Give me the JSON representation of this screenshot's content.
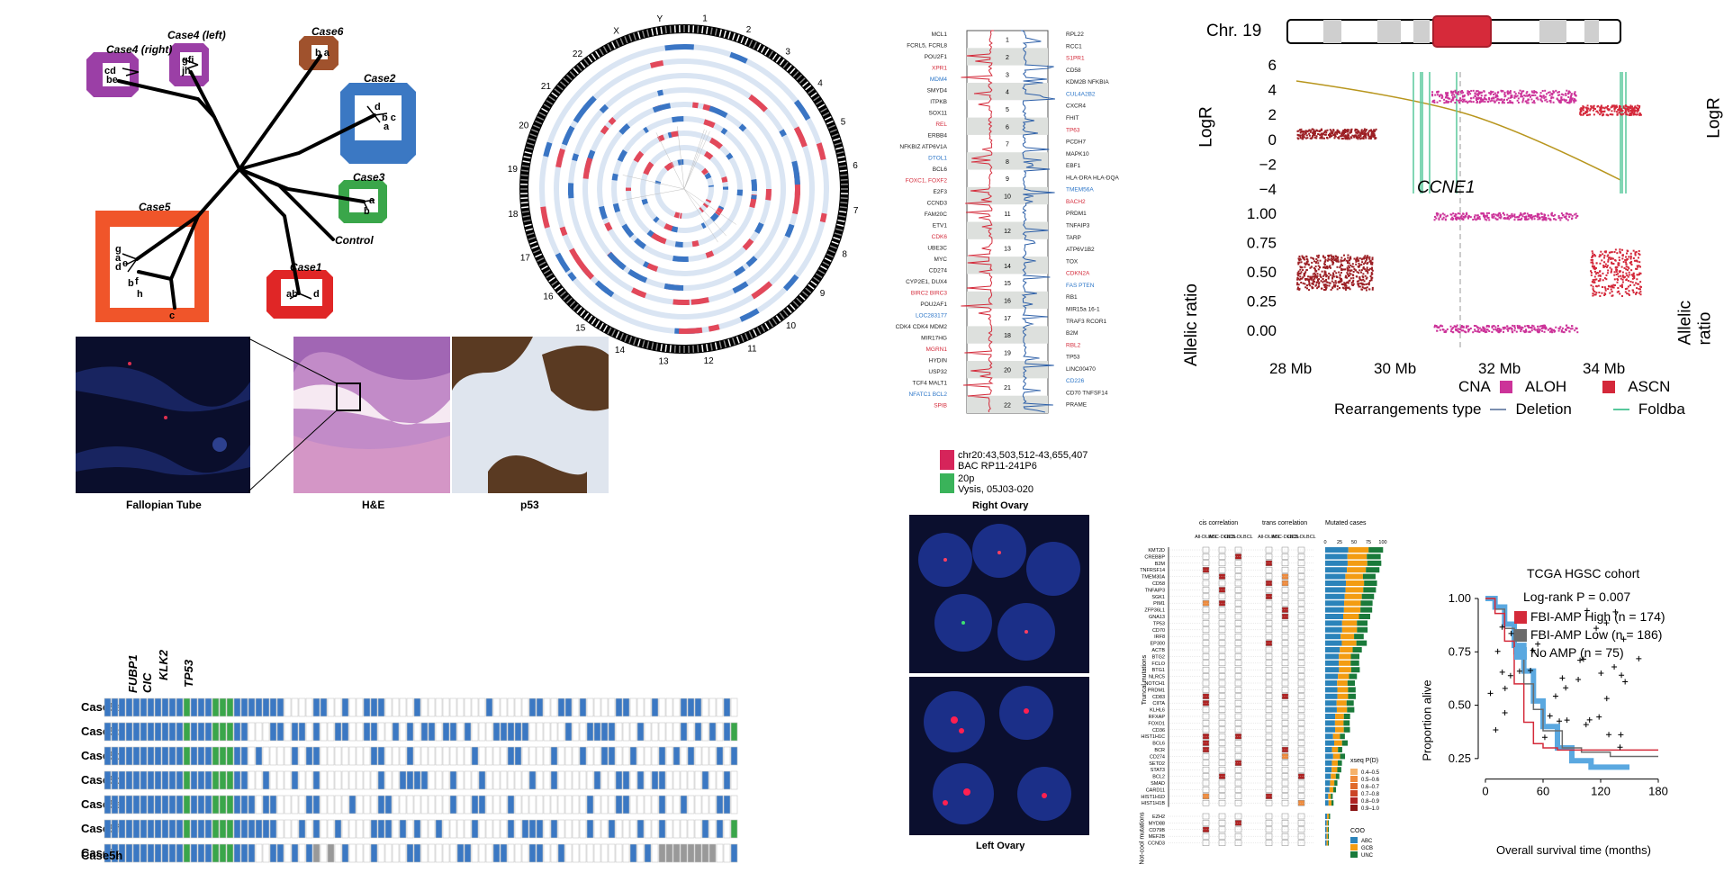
{
  "tree": {
    "cases": [
      {
        "name": "Case4 (right)",
        "color": "#9b3fa6",
        "letters": "cd be"
      },
      {
        "name": "Case4 (left)",
        "color": "#9b3fa6",
        "letters": "gfi jh"
      },
      {
        "name": "Case6",
        "color": "#a0522d",
        "letters": "b a"
      },
      {
        "name": "Case2",
        "color": "#3b78c3",
        "letters": "d b c a"
      },
      {
        "name": "Case3",
        "color": "#3aa64a",
        "letters": "a b"
      },
      {
        "name": "Case5",
        "color": "#f0552a",
        "letters": "g a d e b f h c"
      },
      {
        "name": "Control",
        "color": "",
        "letters": ""
      },
      {
        "name": "Case1",
        "color": "#e02626",
        "letters": "ab d"
      }
    ]
  },
  "circos": {
    "chromosomes": [
      "1",
      "2",
      "3",
      "4",
      "5",
      "6",
      "7",
      "8",
      "9",
      "10",
      "11",
      "12",
      "13",
      "14",
      "15",
      "16",
      "17",
      "18",
      "19",
      "20",
      "21",
      "22",
      "X",
      "Y"
    ]
  },
  "cnv_track": {
    "left_genes": [
      "MCL1",
      "FCRL5, FCRL8",
      "POU2F1",
      "XPR1",
      "MDM4",
      "SMYD4",
      "ITPKB",
      "SOX11",
      "REL",
      "ERBB4",
      "NFKBIZ ATP6V1A",
      "DTOL1",
      "BCL6",
      "FOXC1, FOXF2",
      "E2F3",
      "CCND3",
      "FAM20C",
      "ETV1",
      "CDK6",
      "UBE3C",
      "MYC",
      "CD274",
      "CYP2E1, DUX4",
      "BIRC2 BIRC3",
      "POU2AF1",
      "LOC283177",
      "CDK4 CDK4 MDM2",
      "MIR17HG",
      "MGRN1",
      "HYDIN",
      "USP32",
      "TCF4 MALT1",
      "NFATC1 BCL2",
      "SPIB"
    ],
    "right_genes": [
      "RPL22",
      "RCC1",
      "S1PR1",
      "CD58",
      "KDM2B NFKBIA",
      "CUL4A2B2",
      "CXCR4",
      "FHIT",
      "TP63",
      "PCDH7",
      "MAPK10",
      "EBF1",
      "HLA-DRA HLA-DQA",
      "TMEM56A",
      "BACH2",
      "PRDM1",
      "TNFAIP3",
      "TARP",
      "ATP6V1B2",
      "TOX",
      "CDKN2A",
      "FAS PTEN",
      "RB1",
      "MIR15a 16-1",
      "TRAF3 RCOR1",
      "B2M",
      "RBL2",
      "TP53",
      "LINC00470",
      "CD226",
      "CD70 TNFSF14",
      "PRAME"
    ],
    "chr_labels": [
      "1",
      "2",
      "3",
      "4",
      "5",
      "6",
      "7",
      "8",
      "9",
      "10",
      "11",
      "12",
      "13",
      "14",
      "15",
      "16",
      "17",
      "18",
      "19",
      "20",
      "21",
      "22"
    ],
    "legend": [
      {
        "color": "#d6245a",
        "text": "chr20:43,503,512-43,655,407",
        "sub": "BAC RP11-241P6"
      },
      {
        "color": "#3ab35a",
        "text": "20p",
        "sub": "Vysis, 05J03-020"
      }
    ]
  },
  "chr19": {
    "title": "Chr. 19",
    "logr_label": "LogR",
    "allelic_label": "Allelic ratio",
    "gene": "CCNE1",
    "logr_ticks": [
      "6",
      "4",
      "2",
      "0",
      "−2",
      "−4"
    ],
    "allelic_ticks": [
      "1.00",
      "0.75",
      "0.50",
      "0.25",
      "0.00"
    ],
    "x_ticks": [
      "28 Mb",
      "30 Mb",
      "32 Mb",
      "34 Mb"
    ],
    "legend1_title": "CNA",
    "legend1": [
      {
        "color": "#cc3399",
        "text": "ALOH"
      },
      {
        "color": "#d4283a",
        "text": "ASCN"
      }
    ],
    "legend2_title": "Rearrangements type",
    "legend2": [
      {
        "color": "#7b8fb0",
        "text": "Deletion"
      },
      {
        "color": "#58c89c",
        "text": "Foldba"
      }
    ]
  },
  "histology": {
    "labels": [
      "Fallopian Tube",
      "H&E",
      "p53"
    ]
  },
  "fish": {
    "top_label": "Right Ovary",
    "bottom_label": "Left Ovary"
  },
  "mutation_grid": {
    "genes": [
      "FUBP1",
      "CIC",
      "KLK2",
      "TP53"
    ],
    "rows": [
      "Case5a",
      "Case5b",
      "Case5c",
      "Case5d",
      "Case5e",
      "Case5f",
      "Case5g",
      "Case5h"
    ]
  },
  "heatmap": {
    "group_headers": [
      "cis correlation",
      "trans correlation",
      "Mutated cases"
    ],
    "col_headers": [
      "All-DLBCL",
      "ABC-DLBCL",
      "GCB-DLBCL",
      "All-DLBCL",
      "ABC-DLBCL",
      "GCB-DLBCL"
    ],
    "mutated_ticks": [
      "0",
      "25",
      "50",
      "75",
      "100"
    ],
    "side_labels": [
      "Truncal mutations",
      "Not-cool mutations"
    ],
    "genes": [
      "KMT2D",
      "CREBBP",
      "B2M",
      "TNFRSF14",
      "TMEM30A",
      "CD58",
      "TNFAIP3",
      "SGK1",
      "PIM1",
      "ZFP36L1",
      "GNA13",
      "TP53",
      "CD70",
      "IRF8",
      "EP300",
      "ACTB",
      "BTG2",
      "FCLO",
      "BTG1",
      "NLRC5",
      "NOTCH1",
      "PRDM1",
      "CD83",
      "CIITA",
      "KLHL6",
      "RFXAP",
      "FOXO1",
      "CD36",
      "HIST1H1C",
      "BCL6",
      "BCR",
      "CD274",
      "SETD2",
      "STAT3",
      "BCL2",
      "SMAD",
      "CARD11",
      "HIST1H1D",
      "HIST1H1B"
    ],
    "bottom_genes": [
      "EZH2",
      "MYD88",
      "CD79B",
      "MEF2B",
      "CCND3"
    ],
    "legend_title": "xseq P(D)",
    "legend_bins": [
      {
        "color": "#f6b26b",
        "text": "0.4–0.5"
      },
      {
        "color": "#f08b3c",
        "text": "0.5–0.6"
      },
      {
        "color": "#e06a2a",
        "text": "0.6–0.7"
      },
      {
        "color": "#cc4426",
        "text": "0.7–0.8"
      },
      {
        "color": "#b02222",
        "text": "0.8–0.9"
      },
      {
        "color": "#8a1515",
        "text": "0.9–1.0"
      }
    ],
    "coo_title": "COO",
    "coo": [
      {
        "color": "#2b83ba",
        "text": "ABC"
      },
      {
        "color": "#f39c12",
        "text": "GCB"
      },
      {
        "color": "#1a7a3a",
        "text": "UNC"
      }
    ]
  },
  "km": {
    "title": "TCGA HGSC cohort",
    "pvalue_label": "Log-rank P = 0.007",
    "series": [
      {
        "name": "FBI-AMP High (n = 174)",
        "color": "#d42a3a"
      },
      {
        "name": "FBI-AMP Low (n = 186)",
        "color": "#6b6b6b"
      },
      {
        "name": "No AMP (n = 75)",
        "color": "#5aa8e0"
      }
    ],
    "ylabel": "Proportion alive",
    "xlabel": "Overall survival time (months)",
    "y_ticks": [
      "1.00",
      "0.75",
      "0.50",
      "0.25"
    ],
    "x_ticks": [
      "0",
      "60",
      "120",
      "180"
    ]
  }
}
